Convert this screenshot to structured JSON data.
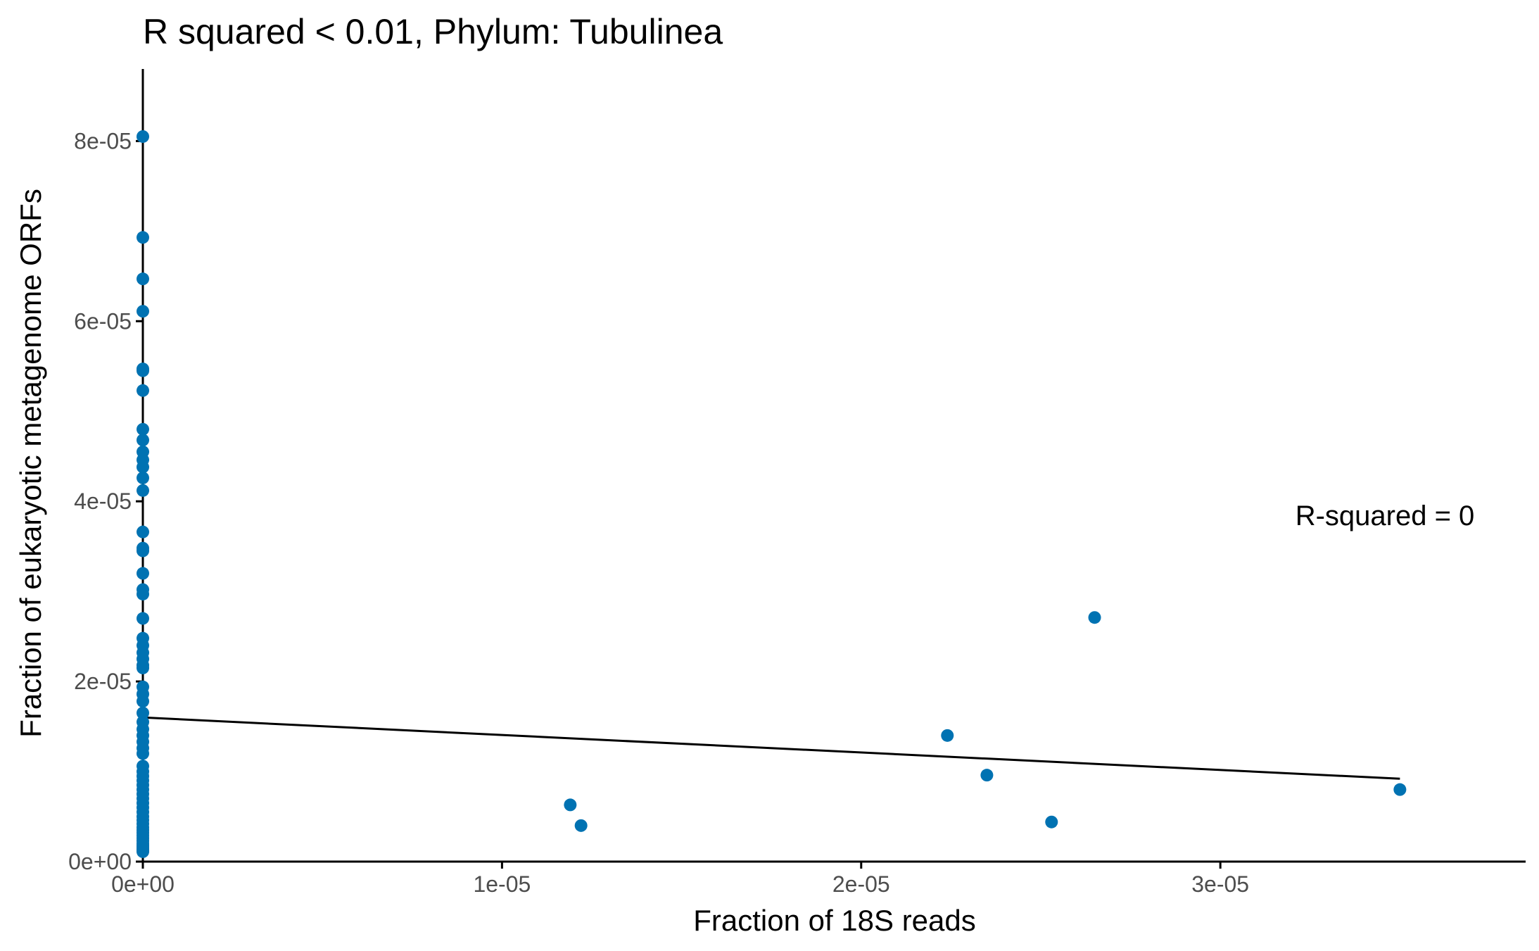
{
  "chart_data": {
    "type": "scatter",
    "title": "R squared < 0.01, Phylum:  Tubulinea",
    "xlabel": "Fraction of 18S reads",
    "ylabel": "Fraction of eukaryotic metagenome ORFs",
    "xlim": [
      0,
      3.85e-05
    ],
    "ylim": [
      0,
      8.8e-05
    ],
    "x_ticks": [
      0,
      1e-05,
      2e-05,
      3e-05
    ],
    "x_tick_labels": [
      "0e+00",
      "1e-05",
      "2e-05",
      "3e-05"
    ],
    "y_ticks": [
      0,
      2e-05,
      4e-05,
      6e-05,
      8e-05
    ],
    "y_tick_labels": [
      "0e+00",
      "2e-05",
      "4e-05",
      "6e-05",
      "8e-05"
    ],
    "grid": false,
    "point_color": "#0072B2",
    "line_color": "#000000",
    "annotation": "R-squared =  0",
    "fit_line": {
      "x": [
        0,
        3.5e-05
      ],
      "y": [
        1.6e-05,
        9.2e-06
      ]
    },
    "series": [
      {
        "x": [
          0,
          0,
          0,
          0,
          0,
          0,
          0,
          0,
          0,
          0,
          0,
          0,
          0,
          0,
          0,
          0,
          0,
          0,
          0,
          0,
          0,
          0,
          0,
          0,
          0,
          0,
          0,
          0,
          0,
          0,
          0,
          0,
          0,
          0,
          0,
          0,
          0,
          0,
          0,
          0,
          0,
          0,
          0,
          0,
          0,
          0,
          0,
          0,
          0,
          0,
          0,
          0,
          0,
          0,
          0,
          0,
          0,
          0,
          0,
          0,
          0,
          0,
          0,
          0,
          1.19e-05,
          1.22e-05,
          2.24e-05,
          2.35e-05,
          2.53e-05,
          2.65e-05,
          3.5e-05
        ],
        "y": [
          8.05e-05,
          6.93e-05,
          6.47e-05,
          6.11e-05,
          5.47e-05,
          5.45e-05,
          5.23e-05,
          4.8e-05,
          4.68e-05,
          4.55e-05,
          4.46e-05,
          4.38e-05,
          4.26e-05,
          4.12e-05,
          3.66e-05,
          3.48e-05,
          3.45e-05,
          3.2e-05,
          3.02e-05,
          2.97e-05,
          2.7e-05,
          2.48e-05,
          2.4e-05,
          2.32e-05,
          2.25e-05,
          2.18e-05,
          2.15e-05,
          1.94e-05,
          1.86e-05,
          1.78e-05,
          1.65e-05,
          1.55e-05,
          1.47e-05,
          1.4e-05,
          1.33e-05,
          1.26e-05,
          1.2e-05,
          1.06e-05,
          1e-05,
          9.5e-06,
          9e-06,
          8.5e-06,
          8e-06,
          7.5e-06,
          7e-06,
          6.5e-06,
          6e-06,
          5.5e-06,
          5e-06,
          4.6e-06,
          4.2e-06,
          3.8e-06,
          3.5e-06,
          3.2e-06,
          2.9e-06,
          2.6e-06,
          2.3e-06,
          2e-06,
          1.8e-06,
          1.6e-06,
          1.4e-06,
          1.3e-06,
          1.2e-06,
          1.1e-06,
          6.3e-06,
          4e-06,
          1.4e-05,
          9.6e-06,
          4.4e-06,
          2.71e-05,
          8e-06
        ]
      }
    ]
  }
}
